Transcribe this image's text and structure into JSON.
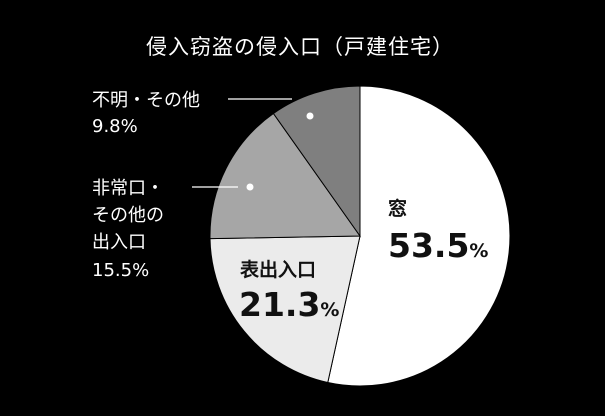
{
  "chart_data": {
    "type": "pie",
    "title": "侵入窃盗の侵入口（戸建住宅）",
    "slices": [
      {
        "label": "窓",
        "value": 53.5,
        "display_number": "53.5",
        "unit": "%",
        "color": "#ffffff"
      },
      {
        "label": "表出入口",
        "value": 21.3,
        "display_number": "21.3",
        "unit": "%",
        "color": "#ebebeb"
      },
      {
        "label_lines": [
          "非常口・",
          "その他の",
          "出入口"
        ],
        "value": 15.5,
        "display_value": "15.5%",
        "color": "#a6a6a6"
      },
      {
        "label": "不明・その他",
        "value": 9.8,
        "display_value": "9.8%",
        "color": "#7f7f7f"
      }
    ]
  }
}
